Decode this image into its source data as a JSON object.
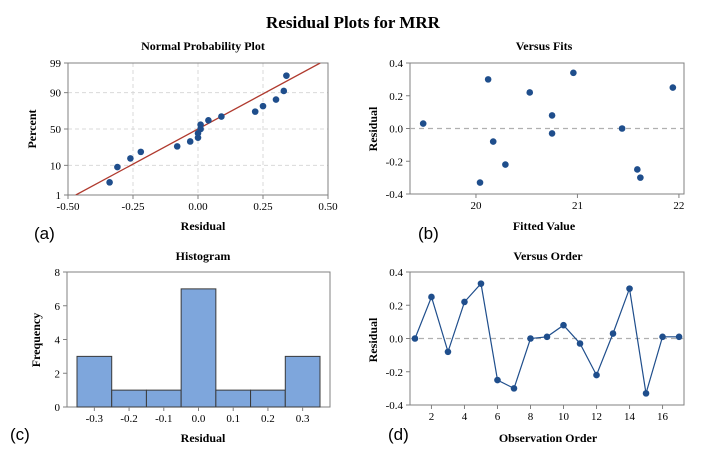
{
  "figure": {
    "title": "Residual Plots for MRR",
    "panel_tags": [
      "(a)",
      "(b)",
      "(c)",
      "(d)"
    ]
  },
  "colors": {
    "point": "#1f4e8c",
    "fit_line": "#b03a2e",
    "bar_fill": "#7ea6dc",
    "bar_stroke": "#3a3a3a",
    "ref_line": "#b0b0b0",
    "grid": "#d9d9d9"
  },
  "chart_data": [
    {
      "id": "npp",
      "type": "scatter",
      "title": "Normal Probability Plot",
      "xlabel": "Residual",
      "ylabel": "Percent",
      "xlim": [
        -0.5,
        0.5
      ],
      "x_ticks": [
        "-0.50",
        "-0.25",
        "0.00",
        "0.25",
        "0.50"
      ],
      "y_scale": "normal-probability",
      "y_ticks": [
        1,
        10,
        50,
        90,
        99
      ],
      "grid": true,
      "fit_line": {
        "x": [
          -0.47,
          0.47
        ],
        "y": [
          1,
          99
        ]
      },
      "points": [
        {
          "x": -0.34,
          "y": 3
        },
        {
          "x": -0.31,
          "y": 9
        },
        {
          "x": -0.26,
          "y": 15
        },
        {
          "x": -0.22,
          "y": 21
        },
        {
          "x": -0.08,
          "y": 27
        },
        {
          "x": -0.03,
          "y": 33
        },
        {
          "x": 0.0,
          "y": 38
        },
        {
          "x": 0.0,
          "y": 44
        },
        {
          "x": 0.01,
          "y": 50
        },
        {
          "x": 0.01,
          "y": 56
        },
        {
          "x": 0.04,
          "y": 62
        },
        {
          "x": 0.09,
          "y": 67
        },
        {
          "x": 0.22,
          "y": 73
        },
        {
          "x": 0.25,
          "y": 79
        },
        {
          "x": 0.3,
          "y": 85
        },
        {
          "x": 0.33,
          "y": 91
        },
        {
          "x": 0.34,
          "y": 97
        }
      ]
    },
    {
      "id": "fits",
      "type": "scatter",
      "title": "Versus Fits",
      "xlabel": "Fitted Value",
      "ylabel": "Residual",
      "xlim": [
        19.35,
        22.05
      ],
      "ylim": [
        -0.4,
        0.4
      ],
      "x_ticks": [
        "20",
        "21",
        "22"
      ],
      "y_ticks": [
        "-0.4",
        "-0.2",
        "0.0",
        "0.2",
        "0.4"
      ],
      "reference_y": 0,
      "points": [
        {
          "x": 19.48,
          "y": 0.03
        },
        {
          "x": 20.04,
          "y": -0.33
        },
        {
          "x": 20.12,
          "y": 0.3
        },
        {
          "x": 20.17,
          "y": -0.08
        },
        {
          "x": 20.29,
          "y": -0.22
        },
        {
          "x": 20.53,
          "y": 0.22
        },
        {
          "x": 20.75,
          "y": 0.08
        },
        {
          "x": 20.75,
          "y": -0.03
        },
        {
          "x": 20.96,
          "y": 0.34
        },
        {
          "x": 21.44,
          "y": 0.0
        },
        {
          "x": 21.59,
          "y": -0.25
        },
        {
          "x": 21.62,
          "y": -0.3
        },
        {
          "x": 21.94,
          "y": 0.25
        }
      ]
    },
    {
      "id": "hist",
      "type": "bar",
      "title": "Histogram",
      "xlabel": "Residual",
      "ylabel": "Frequency",
      "categories": [
        "-0.3",
        "-0.2",
        "-0.1",
        "0.0",
        "0.1",
        "0.2",
        "0.3"
      ],
      "values": [
        3,
        1,
        1,
        7,
        1,
        1,
        3
      ],
      "ylim": [
        0,
        8
      ],
      "y_ticks": [
        "0",
        "2",
        "4",
        "6",
        "8"
      ]
    },
    {
      "id": "order",
      "type": "line",
      "title": "Versus Order",
      "xlabel": "Observation Order",
      "ylabel": "Residual",
      "xlim": [
        0.7,
        17.3
      ],
      "ylim": [
        -0.4,
        0.4
      ],
      "x_ticks": [
        "2",
        "4",
        "6",
        "8",
        "10",
        "12",
        "14",
        "16"
      ],
      "y_ticks": [
        "-0.4",
        "-0.2",
        "0.0",
        "0.2",
        "0.4"
      ],
      "reference_y": 0,
      "x": [
        1,
        2,
        3,
        4,
        5,
        6,
        7,
        8,
        9,
        10,
        11,
        12,
        13,
        14,
        15,
        16,
        17
      ],
      "y": [
        0.0,
        0.25,
        -0.08,
        0.22,
        0.33,
        -0.25,
        -0.3,
        0.0,
        0.01,
        0.08,
        -0.03,
        -0.22,
        0.03,
        0.3,
        -0.33,
        0.01,
        0.01
      ]
    }
  ]
}
